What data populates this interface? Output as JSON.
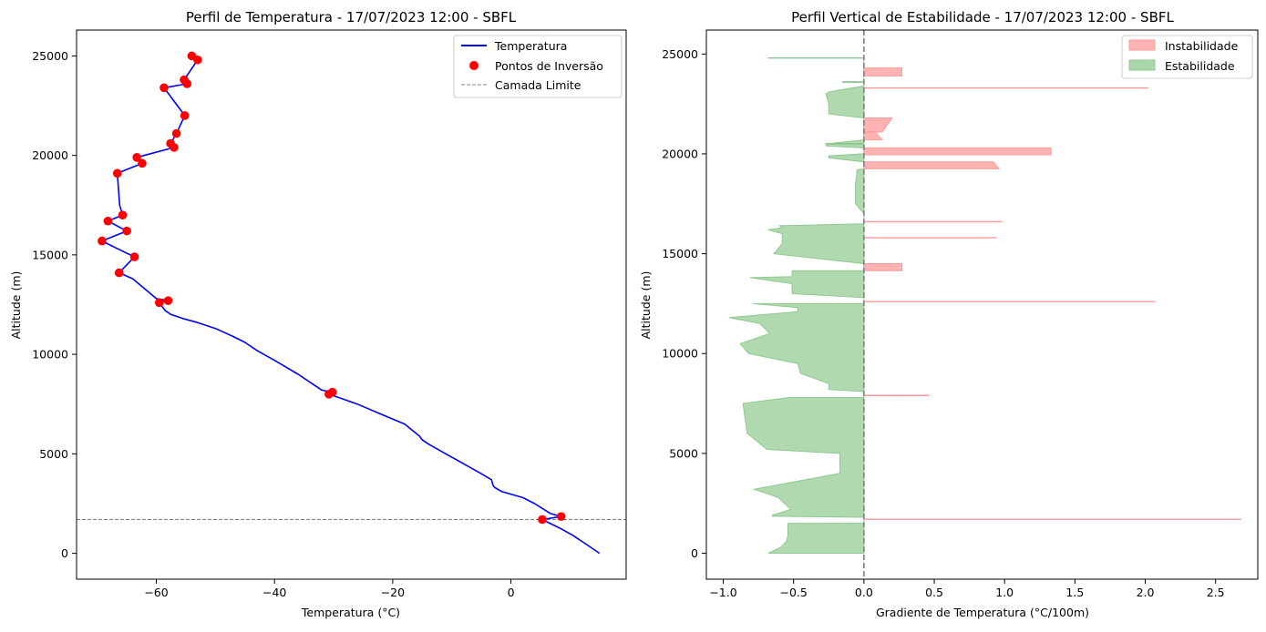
{
  "chart_data": [
    {
      "type": "line",
      "title": "Perfil de Temperatura - 17/07/2023 12:00 - SBFL",
      "xlabel": "Temperatura (°C)",
      "ylabel": "Altitude (m)",
      "xlim": [
        -73.5,
        19.5
      ],
      "ylim": [
        -1300,
        26300
      ],
      "xticks": [
        -60,
        -40,
        -20,
        0
      ],
      "xtick_labels": [
        "−60",
        "−40",
        "−20",
        "0"
      ],
      "yticks": [
        0,
        5000,
        10000,
        15000,
        20000,
        25000
      ],
      "ytick_labels": [
        "0",
        "5000",
        "10000",
        "15000",
        "20000",
        "25000"
      ],
      "grid": false,
      "legend": "top-right",
      "boundary_layer_altitude": 1700,
      "colors": {
        "temperature": "#0000ff",
        "inversions": "#ff0000",
        "boundary": "#808080"
      },
      "series": [
        {
          "name": "Temperatura",
          "x": [
            15,
            13.5,
            12,
            10.5,
            8.7,
            5.3,
            8.5,
            6.7,
            4,
            2,
            -1.5,
            -2.7,
            -3,
            -3.3,
            -5,
            -8,
            -11,
            -14,
            -15,
            -15.5,
            -18,
            -22,
            -26,
            -30.8,
            -30.2,
            -32,
            -33.5,
            -36,
            -40,
            -43,
            -45,
            -47,
            -50,
            -53,
            -55.5,
            -57.5,
            -58.5,
            -59.5,
            -58,
            -60,
            -62,
            -64,
            -66.3,
            -65,
            -63.7,
            -66.5,
            -69.2,
            -65,
            -68.2,
            -65.7,
            -66.2,
            -66.6,
            -62.4,
            -63.3,
            -57,
            -57.6,
            -56.6,
            -55.2,
            -58.7,
            -54.8,
            -55.3,
            -53,
            -54
          ],
          "y": [
            0,
            300,
            600,
            900,
            1200,
            1700,
            1850,
            2000,
            2500,
            2800,
            3100,
            3300,
            3400,
            3700,
            4000,
            4500,
            5000,
            5500,
            5700,
            5900,
            6500,
            7000,
            7500,
            8000,
            8100,
            8200,
            8500,
            9000,
            9700,
            10200,
            10600,
            10900,
            11300,
            11600,
            11800,
            12000,
            12200,
            12600,
            12700,
            12800,
            13300,
            13800,
            14100,
            14500,
            14900,
            15300,
            15700,
            16200,
            16700,
            17000,
            17500,
            19100,
            19600,
            19900,
            20400,
            20600,
            21100,
            22000,
            23400,
            23600,
            23800,
            24800,
            25000
          ]
        },
        {
          "name": "Pontos de Inversão",
          "type": "scatter",
          "x": [
            5.3,
            8.5,
            -30.8,
            -30.2,
            -59.5,
            -58,
            -66.3,
            -63.7,
            -69.2,
            -65,
            -68.2,
            -65.7,
            -66.6,
            -62.4,
            -63.3,
            -57,
            -57.6,
            -56.6,
            -55.2,
            -58.7,
            -54.8,
            -55.3,
            -53,
            -54
          ],
          "y": [
            1700,
            1850,
            8000,
            8100,
            12600,
            12700,
            14100,
            14900,
            15700,
            16200,
            16700,
            17000,
            19100,
            19600,
            19900,
            20400,
            20600,
            21100,
            22000,
            23400,
            23600,
            23800,
            24800,
            25000
          ]
        },
        {
          "name": "Camada Limite",
          "type": "hline",
          "y": 1700
        }
      ]
    },
    {
      "type": "area",
      "title": "Perfil Vertical de Estabilidade - 17/07/2023 12:00 - SBFL",
      "xlabel": "Gradiente de Temperatura (°C/100m)",
      "ylabel": "Altitude (m)",
      "xlim": [
        -1.12,
        2.8
      ],
      "ylim": [
        -1300,
        26200
      ],
      "xticks": [
        -1.0,
        -0.5,
        0.0,
        0.5,
        1.0,
        1.5,
        2.0,
        2.5
      ],
      "xtick_labels": [
        "−1.0",
        "−0.5",
        "0.0",
        "0.5",
        "1.0",
        "1.5",
        "2.0",
        "2.5"
      ],
      "yticks": [
        0,
        5000,
        10000,
        15000,
        20000,
        25000
      ],
      "ytick_labels": [
        "0",
        "5000",
        "10000",
        "15000",
        "20000",
        "25000"
      ],
      "grid": false,
      "legend": "top-right",
      "zero_line": 0,
      "colors": {
        "instability": "#ff9999",
        "stability": "#8fc98f",
        "zero": "#808080"
      },
      "series": [
        {
          "name": "Instabilidade",
          "segments": [
            {
              "y": [
                1690,
                1710
              ],
              "x": [
                2.68,
                2.68
              ]
            },
            {
              "y": [
                7890,
                7910
              ],
              "x": [
                0.46,
                0.46
              ]
            },
            {
              "y": [
                12590,
                12610
              ],
              "x": [
                2.07,
                2.07
              ]
            },
            {
              "y": [
                14150,
                14500
              ],
              "x": [
                0.27,
                0.27
              ]
            },
            {
              "y": [
                15790,
                15810
              ],
              "x": [
                0.94,
                0.94
              ]
            },
            {
              "y": [
                16590,
                16610
              ],
              "x": [
                0.98,
                0.98
              ]
            },
            {
              "y": [
                19250,
                19600
              ],
              "x": [
                0.96,
                0.92
              ]
            },
            {
              "y": [
                19950,
                20300
              ],
              "x": [
                1.33,
                1.33
              ]
            },
            {
              "y": [
                20700,
                21100
              ],
              "x": [
                0.13,
                0.08
              ]
            },
            {
              "y": [
                21100,
                21800
              ],
              "x": [
                0.13,
                0.2
              ]
            },
            {
              "y": [
                23290,
                23310
              ],
              "x": [
                2.02,
                2.02
              ]
            },
            {
              "y": [
                23900,
                24300
              ],
              "x": [
                0.27,
                0.27
              ]
            }
          ]
        },
        {
          "name": "Estabilidade",
          "profile": {
            "y": [
              0,
              300,
              600,
              900,
              1500,
              1500,
              1800,
              1850,
              1900,
              2200,
              2800,
              3200,
              4000,
              5000,
              5200,
              6000,
              7000,
              7500,
              7800,
              7800,
              8100,
              8200,
              8500,
              9000,
              9500,
              10000,
              10500,
              11000,
              11500,
              11800,
              11900,
              12100,
              12300,
              12500,
              12500,
              12800,
              13000,
              13500,
              13800,
              13850,
              14150,
              14150,
              14500,
              14500,
              15000,
              15500,
              15800,
              16000,
              16200,
              16300,
              16400,
              16500,
              16600,
              16800,
              17000,
              17500,
              18500,
              19000,
              19200,
              19250,
              19600,
              19800,
              19900,
              20000,
              20300,
              20400,
              20500,
              20700,
              21800,
              22000,
              22500,
              23000,
              23100,
              23400,
              23700,
              23900,
              24300,
              24700,
              24800,
              24900
            ],
            "x": [
              -0.68,
              -0.59,
              -0.55,
              -0.54,
              -0.54,
              0,
              0,
              -0.65,
              -0.65,
              -0.52,
              -0.61,
              -0.78,
              -0.17,
              -0.17,
              -0.69,
              -0.83,
              -0.85,
              -0.86,
              -0.53,
              0,
              0,
              -0.25,
              -0.25,
              -0.45,
              -0.47,
              -0.82,
              -0.88,
              -0.67,
              -0.74,
              -0.96,
              -0.8,
              -0.47,
              -0.47,
              -0.79,
              0,
              0,
              -0.51,
              -0.51,
              -0.81,
              -0.51,
              -0.51,
              0,
              0,
              0,
              -0.64,
              -0.58,
              -0.58,
              -0.58,
              -0.68,
              -0.58,
              -0.6,
              0,
              0,
              0,
              0,
              -0.06,
              -0.06,
              -0.05,
              -0.05,
              0,
              0,
              -0.25,
              -0.25,
              0,
              0,
              -0.27,
              -0.27,
              0,
              0,
              -0.25,
              -0.25,
              -0.27,
              -0.25,
              0,
              0,
              0,
              0,
              0,
              0,
              0
            ]
          },
          "segments": [
            {
              "y": [
                23580,
                23620
              ],
              "x": [
                -0.15,
                -0.15
              ]
            },
            {
              "y": [
                20480,
                20520
              ],
              "x": [
                -0.27,
                -0.27
              ]
            },
            {
              "y": [
                24790,
                24810
              ],
              "x": [
                -0.68,
                -0.68
              ]
            }
          ]
        }
      ]
    }
  ]
}
